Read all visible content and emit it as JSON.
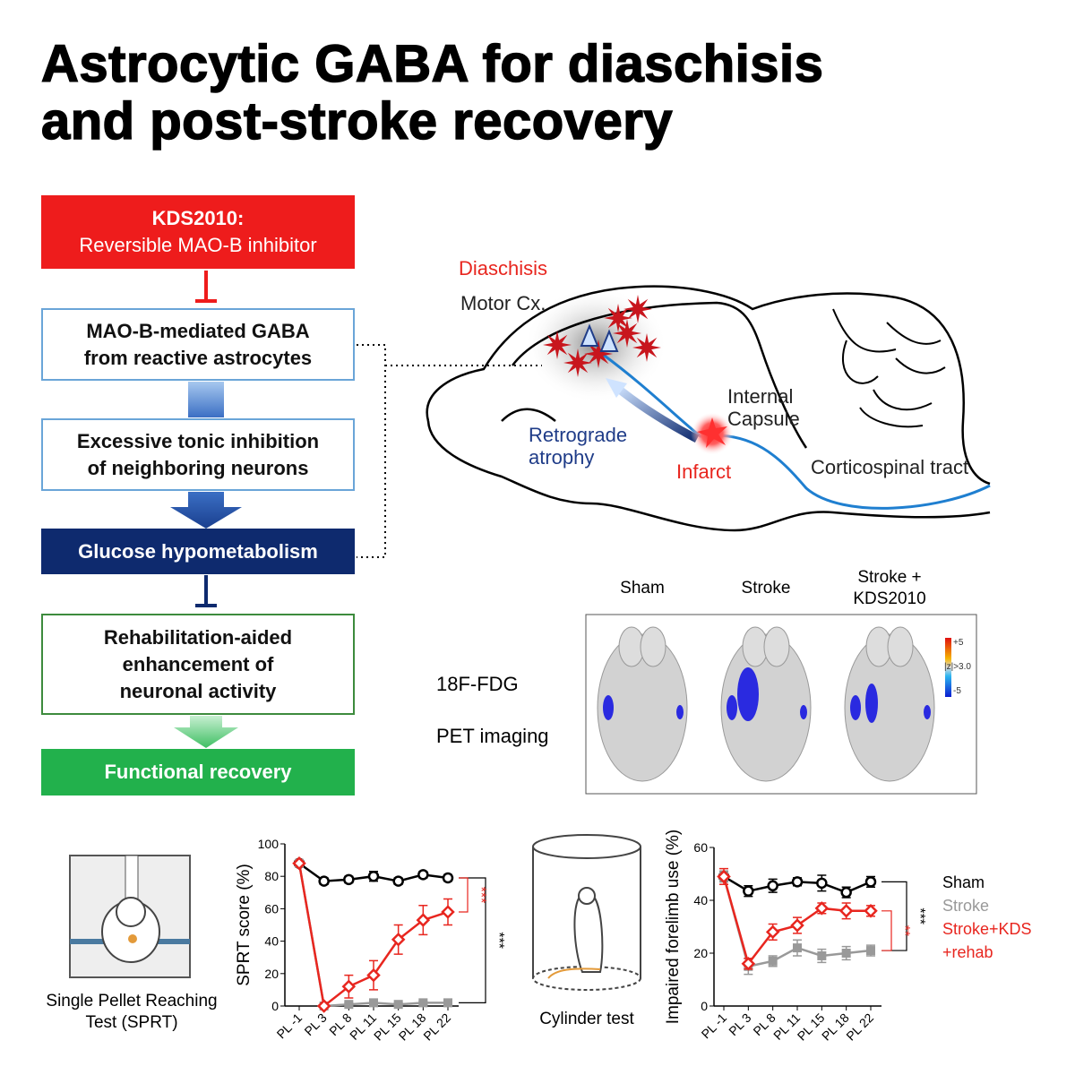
{
  "title": [
    "Astrocytic GABA for diaschisis",
    "and post-stroke recovery"
  ],
  "flow": [
    [
      "KDS2010:",
      "Reversible MAO-B inhibitor"
    ],
    [
      "MAO-B-mediated GABA",
      "from reactive astrocytes"
    ],
    [
      "Excessive tonic inhibition",
      "of neighboring neurons"
    ],
    [
      "Glucose hypometabolism"
    ],
    [
      "Rehabilitation-aided",
      "enhancement of",
      "neuronal activity"
    ],
    [
      "Functional recovery"
    ]
  ],
  "brain": {
    "diaschisis": "Diaschisis",
    "motor": "Motor Cx.",
    "internal": [
      "Internal",
      "Capsule"
    ],
    "retrograde": [
      "Retrograde",
      "atrophy"
    ],
    "infarct": "Infarct",
    "tract": "Corticospinal tract"
  },
  "pet": {
    "columns": [
      "Sham",
      "Stroke",
      "Stroke + KDS2010"
    ],
    "method": [
      "18F-FDG",
      "PET imaging"
    ],
    "scale": [
      "+5",
      "|z|>3.0",
      "-5"
    ]
  },
  "tests": [
    "Single Pellet Reaching Test (SPRT)",
    "Cylinder test"
  ],
  "chart_data": [
    {
      "type": "line",
      "y_label": "SPRT score (%)",
      "categories": [
        "PL -1",
        "PL 3",
        "PL 8",
        "PL 11",
        "PL 15",
        "PL 18",
        "PL 22"
      ],
      "ylim": [
        0,
        100
      ],
      "yticks": [
        0,
        20,
        40,
        60,
        80,
        100
      ],
      "annotations": [
        "***",
        "***"
      ],
      "series": [
        {
          "color": "#000000",
          "marker": "circle",
          "values": [
            88,
            77,
            78,
            80,
            77,
            81,
            79
          ],
          "errors": [
            2,
            2,
            2,
            3,
            2,
            2,
            2
          ]
        },
        {
          "color": "#999999",
          "marker": "square",
          "values": [
            88,
            0,
            1,
            2,
            1,
            2,
            2
          ],
          "errors": [
            0,
            0,
            1,
            1,
            1,
            1,
            1
          ]
        },
        {
          "color": "#e8261f",
          "marker": "diamond",
          "values": [
            88,
            0,
            12,
            19,
            41,
            53,
            58
          ],
          "errors": [
            0,
            0,
            7,
            9,
            9,
            9,
            8
          ]
        }
      ]
    },
    {
      "type": "line",
      "y_label": "Impaired forelimb use (%)",
      "categories": [
        "PL -1",
        "PL 3",
        "PL 8",
        "PL 11",
        "PL 15",
        "PL 18",
        "PL 22"
      ],
      "ylim": [
        0,
        60
      ],
      "yticks": [
        0,
        20,
        40,
        60
      ],
      "annotations": [
        "***",
        "**"
      ],
      "series": [
        {
          "name": "Sham",
          "color": "#000000",
          "marker": "circle",
          "values": [
            49,
            43.5,
            45.5,
            47,
            46.5,
            43,
            47
          ],
          "errors": [
            2,
            2,
            2.5,
            1.5,
            3,
            2,
            2
          ]
        },
        {
          "name": "Stroke",
          "color": "#999999",
          "marker": "square",
          "values": [
            49,
            15,
            17,
            22,
            19,
            20,
            21
          ],
          "errors": [
            2,
            3,
            2,
            3,
            2.5,
            2.5,
            2
          ]
        },
        {
          "name": "Stroke+KDS +rehab",
          "color": "#e8261f",
          "marker": "diamond",
          "values": [
            49,
            16,
            28,
            30.5,
            37,
            36,
            36
          ],
          "errors": [
            3,
            2,
            3,
            3,
            2,
            3,
            2
          ]
        }
      ]
    }
  ]
}
